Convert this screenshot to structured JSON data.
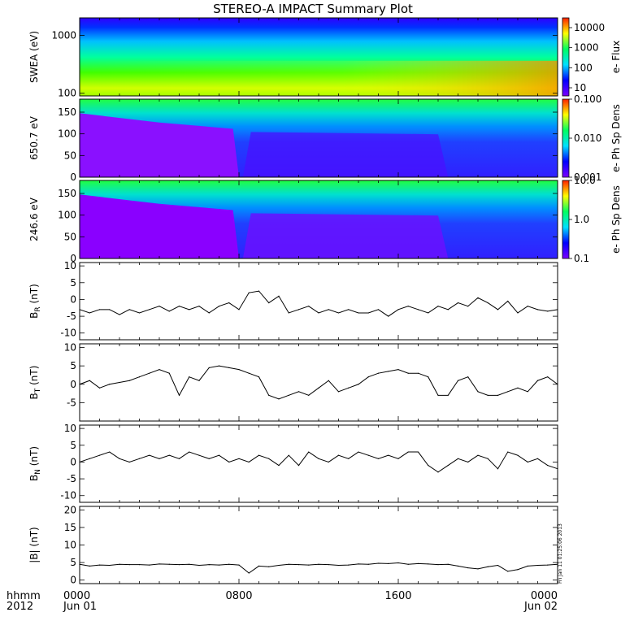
{
  "title": "STEREO-A IMPACT Summary Plot",
  "footer": {
    "left_top": "hhmm",
    "left_bottom": "2012",
    "x_ticks": [
      {
        "time": "0000",
        "date": "Jun 01",
        "hours": 0
      },
      {
        "time": "0800",
        "date": "",
        "hours": 8
      },
      {
        "time": "1600",
        "date": "",
        "hours": 16
      },
      {
        "time": "0000",
        "date": "Jun 02",
        "hours": 24
      }
    ],
    "stamp": "Fri Jan 11 01:25:06 2013"
  },
  "colors": {
    "spectrogram_low": "#8a00ff",
    "spectrogram_high": "#ff2000",
    "line": "#000000"
  },
  "chart_data": [
    {
      "type": "heatmap",
      "ylabel": "SWEA (eV)",
      "colorbar_label": "e- Flux",
      "yscale": "log",
      "ylim": [
        90,
        2000
      ],
      "yticks": [
        100,
        1000
      ],
      "ytick_labels": [
        "100",
        "1000"
      ],
      "colorbar_ticks": [
        "10",
        "100",
        "1000",
        "10000"
      ],
      "colorbar_scale": "log",
      "xlim": [
        0,
        24
      ]
    },
    {
      "type": "heatmap",
      "ylabel": "650.7 eV",
      "colorbar_label": "e- Ph Sp Dens",
      "ylim": [
        0,
        180
      ],
      "yticks": [
        0,
        50,
        100,
        150
      ],
      "ytick_labels": [
        "0",
        "50",
        "100",
        "150"
      ],
      "colorbar_ticks": [
        "0.001",
        "0.010",
        "0.100"
      ],
      "colorbar_scale": "log",
      "xlim": [
        0,
        24
      ]
    },
    {
      "type": "heatmap",
      "ylabel": "246.6 eV",
      "colorbar_label": "e- Ph Sp Dens",
      "ylim": [
        0,
        180
      ],
      "yticks": [
        0,
        50,
        100,
        150
      ],
      "ytick_labels": [
        "0",
        "50",
        "100",
        "150"
      ],
      "colorbar_ticks": [
        "0.1",
        "1.0",
        "10.0"
      ],
      "colorbar_scale": "log",
      "xlim": [
        0,
        24
      ]
    },
    {
      "type": "line",
      "ylabel_main": "B",
      "ylabel_sub": "R",
      "ylabel_unit": "(nT)",
      "ylim": [
        -12,
        11
      ],
      "yticks": [
        -10,
        -5,
        0,
        5,
        10
      ],
      "ytick_labels": [
        "-10",
        "-5",
        "0",
        "5",
        "10"
      ],
      "xlim": [
        0,
        24
      ],
      "x": [
        0,
        0.5,
        1,
        1.5,
        2,
        2.5,
        3,
        3.5,
        4,
        4.5,
        5,
        5.5,
        6,
        6.5,
        7,
        7.5,
        8,
        8.5,
        9,
        9.5,
        10,
        10.5,
        11,
        11.5,
        12,
        12.5,
        13,
        13.5,
        14,
        14.5,
        15,
        15.5,
        16,
        16.5,
        17,
        17.5,
        18,
        18.5,
        19,
        19.5,
        20,
        20.5,
        21,
        21.5,
        22,
        22.5,
        23,
        23.5,
        24
      ],
      "y": [
        -3,
        -4,
        -3,
        -3,
        -4.5,
        -3,
        -4,
        -3,
        -2,
        -3.5,
        -2,
        -3,
        -2,
        -4,
        -2,
        -1,
        -3,
        2,
        2.5,
        -1,
        1,
        -4,
        -3,
        -2,
        -4,
        -3,
        -4,
        -3,
        -4,
        -4,
        -3,
        -5,
        -3,
        -2,
        -3,
        -4,
        -2,
        -3,
        -1,
        -2,
        0.5,
        -1,
        -3,
        -0.5,
        -4,
        -2,
        -3,
        -3.5,
        -3
      ]
    },
    {
      "type": "line",
      "ylabel_main": "B",
      "ylabel_sub": "T",
      "ylabel_unit": "(nT)",
      "ylim": [
        -10,
        11
      ],
      "yticks": [
        -5,
        0,
        5,
        10
      ],
      "ytick_labels": [
        "-5",
        "0",
        "5",
        "10"
      ],
      "xlim": [
        0,
        24
      ],
      "x": [
        0,
        0.5,
        1,
        1.5,
        2,
        2.5,
        3,
        3.5,
        4,
        4.5,
        5,
        5.5,
        6,
        6.5,
        7,
        7.5,
        8,
        8.5,
        9,
        9.5,
        10,
        10.5,
        11,
        11.5,
        12,
        12.5,
        13,
        13.5,
        14,
        14.5,
        15,
        15.5,
        16,
        16.5,
        17,
        17.5,
        18,
        18.5,
        19,
        19.5,
        20,
        20.5,
        21,
        21.5,
        22,
        22.5,
        23,
        23.5,
        24
      ],
      "y": [
        0,
        1,
        -1,
        0,
        0.5,
        1,
        2,
        3,
        4,
        3,
        -3,
        2,
        1,
        4.5,
        5,
        4.5,
        4,
        3,
        2,
        -3,
        -4,
        -3,
        -2,
        -3,
        -1,
        1,
        -2,
        -1,
        0,
        2,
        3,
        3.5,
        4,
        3,
        3,
        2,
        -3,
        -3,
        1,
        2,
        -2,
        -3,
        -3,
        -2,
        -1,
        -2,
        1,
        2,
        0
      ]
    },
    {
      "type": "line",
      "ylabel_main": "B",
      "ylabel_sub": "N",
      "ylabel_unit": "(nT)",
      "ylim": [
        -12,
        11
      ],
      "yticks": [
        -10,
        -5,
        0,
        5,
        10
      ],
      "ytick_labels": [
        "-10",
        "-5",
        "0",
        "5",
        "10"
      ],
      "xlim": [
        0,
        24
      ],
      "x": [
        0,
        0.5,
        1,
        1.5,
        2,
        2.5,
        3,
        3.5,
        4,
        4.5,
        5,
        5.5,
        6,
        6.5,
        7,
        7.5,
        8,
        8.5,
        9,
        9.5,
        10,
        10.5,
        11,
        11.5,
        12,
        12.5,
        13,
        13.5,
        14,
        14.5,
        15,
        15.5,
        16,
        16.5,
        17,
        17.5,
        18,
        18.5,
        19,
        19.5,
        20,
        20.5,
        21,
        21.5,
        22,
        22.5,
        23,
        23.5,
        24
      ],
      "y": [
        0,
        1,
        2,
        3,
        1,
        0,
        1,
        2,
        1,
        2,
        1,
        3,
        2,
        1,
        2,
        0,
        1,
        0,
        2,
        1,
        -1,
        2,
        -1,
        3,
        1,
        0,
        2,
        1,
        3,
        2,
        1,
        2,
        1,
        3,
        3,
        -1,
        -3,
        -1,
        1,
        0,
        2,
        1,
        -2,
        3,
        2,
        0,
        1,
        -1,
        -2
      ]
    },
    {
      "type": "line",
      "ylabel_main": "|B|",
      "ylabel_sub": "",
      "ylabel_unit": "(nT)",
      "ylim": [
        -1,
        21
      ],
      "yticks": [
        0,
        5,
        10,
        15,
        20
      ],
      "ytick_labels": [
        "0",
        "5",
        "10",
        "15",
        "20"
      ],
      "xlim": [
        0,
        24
      ],
      "x": [
        0,
        0.5,
        1,
        1.5,
        2,
        2.5,
        3,
        3.5,
        4,
        4.5,
        5,
        5.5,
        6,
        6.5,
        7,
        7.5,
        8,
        8.5,
        9,
        9.5,
        10,
        10.5,
        11,
        11.5,
        12,
        12.5,
        13,
        13.5,
        14,
        14.5,
        15,
        15.5,
        16,
        16.5,
        17,
        17.5,
        18,
        18.5,
        19,
        19.5,
        20,
        20.5,
        21,
        21.5,
        22,
        22.5,
        23,
        23.5,
        24
      ],
      "y": [
        4.5,
        4,
        4.3,
        4.2,
        4.5,
        4.4,
        4.4,
        4.3,
        4.6,
        4.5,
        4.4,
        4.5,
        4.2,
        4.4,
        4.3,
        4.5,
        4.3,
        2,
        4,
        3.8,
        4.2,
        4.5,
        4.4,
        4.3,
        4.5,
        4.4,
        4.2,
        4.3,
        4.6,
        4.5,
        4.8,
        4.7,
        4.9,
        4.5,
        4.7,
        4.6,
        4.4,
        4.5,
        4,
        3.5,
        3.2,
        3.8,
        4.2,
        2.5,
        3,
        4,
        4.2,
        4.3,
        4.5
      ]
    }
  ]
}
